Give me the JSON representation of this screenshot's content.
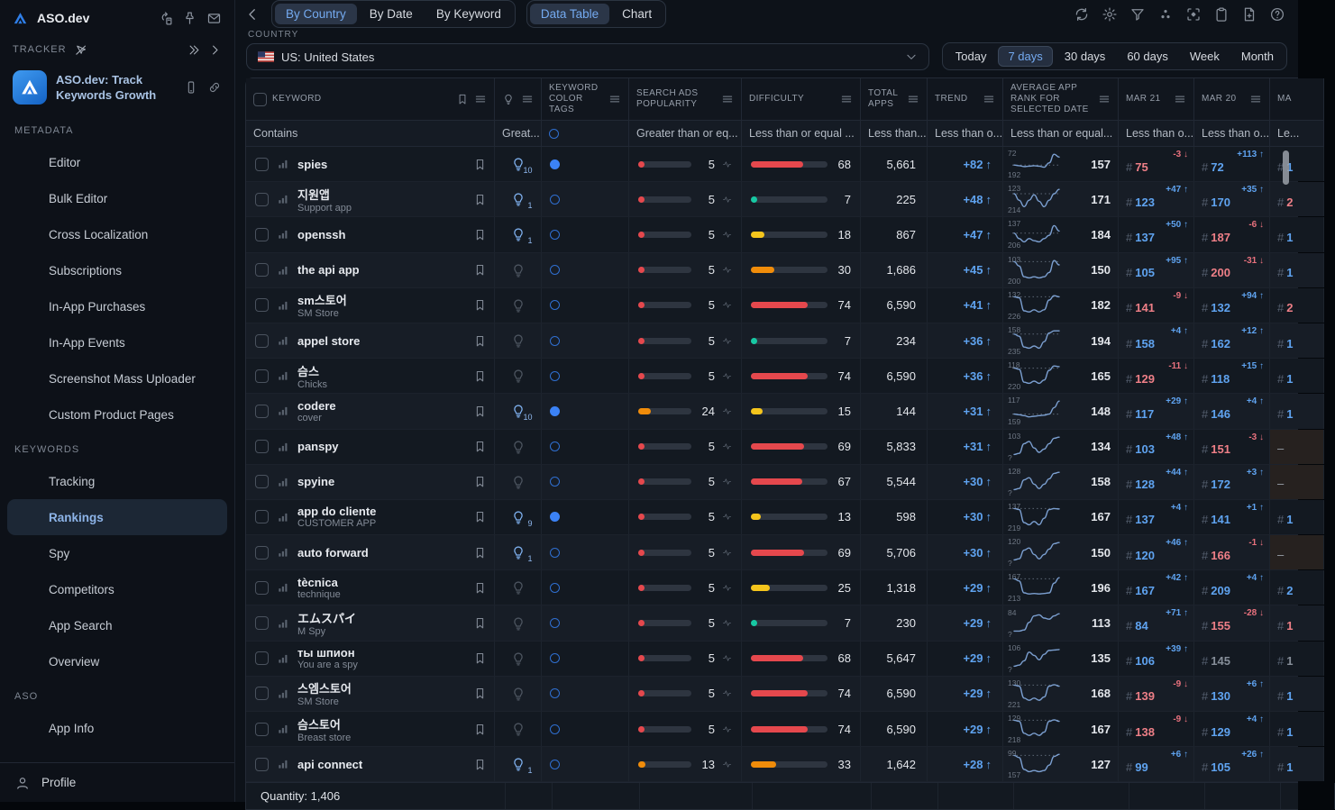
{
  "app": {
    "name": "ASO.dev",
    "tracker_label": "TRACKER",
    "app_card_title": "ASO.dev: Track Keywords Growth",
    "profile_label": "Profile"
  },
  "sidebar": {
    "sections": [
      {
        "label": "METADATA",
        "items": [
          {
            "icon": "pencil",
            "label": "Editor"
          },
          {
            "icon": "bulk",
            "label": "Bulk Editor"
          },
          {
            "icon": "shuffle",
            "label": "Cross Localization"
          },
          {
            "icon": "receipt",
            "label": "Subscriptions"
          },
          {
            "icon": "dollar",
            "label": "In-App Purchases"
          },
          {
            "icon": "bell",
            "label": "In-App Events"
          },
          {
            "icon": "image-up",
            "label": "Screenshot Mass Uploader"
          },
          {
            "icon": "image",
            "label": "Custom Product Pages"
          }
        ]
      },
      {
        "label": "KEYWORDS",
        "items": [
          {
            "icon": "bookmark",
            "label": "Tracking"
          },
          {
            "icon": "key",
            "label": "Rankings",
            "selected": true
          },
          {
            "icon": "shield",
            "label": "Spy"
          },
          {
            "icon": "key-user",
            "label": "Competitors"
          },
          {
            "icon": "bars",
            "label": "App Search"
          },
          {
            "icon": "scan",
            "label": "Overview"
          }
        ]
      },
      {
        "label": "ASO",
        "items": [
          {
            "icon": "info",
            "label": "App Info"
          }
        ]
      }
    ]
  },
  "topbar": {
    "view_tabs": [
      {
        "label": "By Country",
        "selected": true
      },
      {
        "label": "By Date",
        "selected": false
      },
      {
        "label": "By Keyword",
        "selected": false
      }
    ],
    "mode_tabs": [
      {
        "label": "Data Table",
        "selected": true
      },
      {
        "label": "Chart",
        "selected": false
      }
    ]
  },
  "filters": {
    "country_label": "COUNTRY",
    "country_value": "US: United States",
    "ranges": [
      {
        "label": "Today",
        "selected": false
      },
      {
        "label": "7 days",
        "selected": true
      },
      {
        "label": "30 days",
        "selected": false
      },
      {
        "label": "60 days",
        "selected": false
      },
      {
        "label": "Week",
        "selected": false
      },
      {
        "label": "Month",
        "selected": false
      }
    ]
  },
  "table": {
    "columns": {
      "keyword": {
        "label": "KEYWORD",
        "filter": "Contains"
      },
      "bulb": {
        "filter": "Great..."
      },
      "tags": {
        "label": "KEYWORD COLOR TAGS",
        "filter": ""
      },
      "popularity": {
        "label": "SEARCH ADS POPULARITY",
        "filter": "Greater than or eq..."
      },
      "difficulty": {
        "label": "DIFFICULTY",
        "filter": "Less than or equal ..."
      },
      "total": {
        "label": "TOTAL APPS",
        "filter": "Less than..."
      },
      "trend": {
        "label": "TREND",
        "filter": "Less than o..."
      },
      "avgrank": {
        "label": "AVERAGE APP RANK FOR SELECTED DATE",
        "filter": "Less than or equal..."
      },
      "mar21": {
        "label": "MAR 21",
        "filter": "Less than o..."
      },
      "mar20": {
        "label": "MAR 20",
        "filter": "Less than o..."
      },
      "mar19": {
        "label": "MA",
        "filter": "Le..."
      }
    },
    "footer": "Quantity: 1,406",
    "rows": [
      {
        "kw": "spies",
        "sub": "",
        "bulb": "10",
        "tag": "filled",
        "pop": 5,
        "popc": "red",
        "diff": 68,
        "diffc": "red",
        "total": "5,661",
        "trend": "+82",
        "spark": {
          "max": "72",
          "min": "192",
          "val": "157",
          "pts": [
            0.55,
            0.58,
            0.62,
            0.6,
            0.58,
            0.6,
            0.65,
            0.45,
            0.05,
            0.18
          ]
        },
        "d21": {
          "delta": "-3",
          "dir": "down",
          "rank": "75",
          "c": "red"
        },
        "d20": {
          "delta": "+113",
          "dir": "up",
          "rank": "72",
          "c": "blue"
        },
        "d19": {
          "rank": "1",
          "c": "blue"
        }
      },
      {
        "kw": "지원앱",
        "sub": "Support app",
        "bulb": "1",
        "tag": "ring",
        "pop": 5,
        "popc": "red",
        "diff": 7,
        "diffc": "teal",
        "total": "225",
        "trend": "+48",
        "spark": {
          "max": "123",
          "min": "214",
          "val": "171",
          "pts": [
            0.25,
            0.55,
            0.85,
            0.55,
            0.3,
            0.6,
            0.85,
            0.55,
            0.25,
            0.05
          ]
        },
        "d21": {
          "delta": "+47",
          "dir": "up",
          "rank": "123",
          "c": "blue"
        },
        "d20": {
          "delta": "+35",
          "dir": "up",
          "rank": "170",
          "c": "blue"
        },
        "d19": {
          "rank": "2",
          "c": "red"
        }
      },
      {
        "kw": "openssh",
        "sub": "",
        "bulb": "1",
        "tag": "ring",
        "pop": 5,
        "popc": "red",
        "diff": 18,
        "diffc": "yellow",
        "total": "867",
        "trend": "+47",
        "spark": {
          "max": "137",
          "min": "206",
          "val": "184",
          "pts": [
            0.45,
            0.7,
            0.85,
            0.7,
            0.8,
            0.85,
            0.7,
            0.55,
            0.1,
            0.35
          ]
        },
        "d21": {
          "delta": "+50",
          "dir": "up",
          "rank": "137",
          "c": "blue"
        },
        "d20": {
          "delta": "-6",
          "dir": "down",
          "rank": "187",
          "c": "red"
        },
        "d19": {
          "rank": "1",
          "c": "blue"
        }
      },
      {
        "kw": "the api app",
        "sub": "",
        "bulb": "",
        "tag": "ring",
        "pop": 5,
        "popc": "red",
        "diff": 30,
        "diffc": "orange",
        "total": "1,686",
        "trend": "+45",
        "spark": {
          "max": "103",
          "min": "200",
          "val": "150",
          "pts": [
            0.1,
            0.3,
            0.8,
            0.85,
            0.8,
            0.85,
            0.8,
            0.6,
            0.05,
            0.25
          ]
        },
        "d21": {
          "delta": "+95",
          "dir": "up",
          "rank": "105",
          "c": "blue"
        },
        "d20": {
          "delta": "-31",
          "dir": "down",
          "rank": "200",
          "c": "red"
        },
        "d19": {
          "rank": "1",
          "c": "blue"
        }
      },
      {
        "kw": "sm스토어",
        "sub": "SM Store",
        "bulb": "",
        "tag": "ring",
        "pop": 5,
        "popc": "red",
        "diff": 74,
        "diffc": "red",
        "total": "6,590",
        "trend": "+41",
        "spark": {
          "max": "132",
          "min": "226",
          "val": "182",
          "pts": [
            0.1,
            0.15,
            0.75,
            0.8,
            0.7,
            0.8,
            0.7,
            0.25,
            0.05,
            0.1
          ]
        },
        "d21": {
          "delta": "-9",
          "dir": "down",
          "rank": "141",
          "c": "red"
        },
        "d20": {
          "delta": "+94",
          "dir": "up",
          "rank": "132",
          "c": "blue"
        },
        "d19": {
          "rank": "2",
          "c": "red"
        }
      },
      {
        "kw": "appel store",
        "sub": "",
        "bulb": "",
        "tag": "ring",
        "pop": 5,
        "popc": "red",
        "diff": 7,
        "diffc": "teal",
        "total": "234",
        "trend": "+36",
        "spark": {
          "max": "158",
          "min": "235",
          "val": "194",
          "pts": [
            0.2,
            0.3,
            0.8,
            0.85,
            0.75,
            0.85,
            0.55,
            0.15,
            0.05,
            0.05
          ]
        },
        "d21": {
          "delta": "+4",
          "dir": "up",
          "rank": "158",
          "c": "blue"
        },
        "d20": {
          "delta": "+12",
          "dir": "up",
          "rank": "162",
          "c": "blue"
        },
        "d19": {
          "rank": "1",
          "c": "blue"
        }
      },
      {
        "kw": "슴스",
        "sub": "Chicks",
        "bulb": "",
        "tag": "ring",
        "pop": 5,
        "popc": "red",
        "diff": 74,
        "diffc": "red",
        "total": "6,590",
        "trend": "+36",
        "spark": {
          "max": "118",
          "min": "220",
          "val": "165",
          "pts": [
            0.15,
            0.2,
            0.8,
            0.85,
            0.75,
            0.85,
            0.7,
            0.25,
            0.05,
            0.08
          ]
        },
        "d21": {
          "delta": "-11",
          "dir": "down",
          "rank": "129",
          "c": "red"
        },
        "d20": {
          "delta": "+15",
          "dir": "up",
          "rank": "118",
          "c": "blue"
        },
        "d19": {
          "rank": "1",
          "c": "blue"
        }
      },
      {
        "kw": "codere",
        "sub": "cover",
        "bulb": "10",
        "tag": "filled",
        "pop": 24,
        "popc": "orange",
        "diff": 15,
        "diffc": "yellow",
        "total": "144",
        "trend": "+31",
        "spark": {
          "max": "117",
          "min": "159",
          "val": "148",
          "pts": [
            0.65,
            0.68,
            0.72,
            0.78,
            0.75,
            0.72,
            0.7,
            0.65,
            0.35,
            0.05
          ]
        },
        "d21": {
          "delta": "+29",
          "dir": "up",
          "rank": "117",
          "c": "blue"
        },
        "d20": {
          "delta": "+4",
          "dir": "up",
          "rank": "146",
          "c": "blue"
        },
        "d19": {
          "rank": "1",
          "c": "blue"
        }
      },
      {
        "kw": "panspy",
        "sub": "",
        "bulb": "",
        "tag": "ring",
        "pop": 5,
        "popc": "red",
        "diff": 69,
        "diffc": "red",
        "total": "5,833",
        "trend": "+31",
        "spark": {
          "max": "103",
          "min": "?",
          "val": "134",
          "pts": [
            0.85,
            0.8,
            0.35,
            0.25,
            0.55,
            0.75,
            0.6,
            0.35,
            0.1,
            0.05
          ]
        },
        "d21": {
          "delta": "+48",
          "dir": "up",
          "rank": "103",
          "c": "blue"
        },
        "d20": {
          "delta": "-3",
          "dir": "down",
          "rank": "151",
          "c": "red"
        },
        "d19": {
          "rank": "–",
          "c": "gray"
        }
      },
      {
        "kw": "spyine",
        "sub": "",
        "bulb": "",
        "tag": "ring",
        "pop": 5,
        "popc": "red",
        "diff": 67,
        "diffc": "red",
        "total": "5,544",
        "trend": "+30",
        "spark": {
          "max": "128",
          "min": "?",
          "val": "158",
          "pts": [
            0.85,
            0.8,
            0.4,
            0.3,
            0.6,
            0.8,
            0.6,
            0.35,
            0.1,
            0.05
          ]
        },
        "d21": {
          "delta": "+44",
          "dir": "up",
          "rank": "128",
          "c": "blue"
        },
        "d20": {
          "delta": "+3",
          "dir": "up",
          "rank": "172",
          "c": "blue"
        },
        "d19": {
          "rank": "–",
          "c": "gray"
        }
      },
      {
        "kw": "app do cliente",
        "sub": "CUSTOMER APP",
        "bulb": "9",
        "tag": "filled",
        "pop": 5,
        "popc": "red",
        "diff": 13,
        "diffc": "yellow",
        "total": "598",
        "trend": "+30",
        "spark": {
          "max": "137",
          "min": "219",
          "val": "167",
          "pts": [
            0.1,
            0.15,
            0.75,
            0.85,
            0.7,
            0.85,
            0.55,
            0.15,
            0.1,
            0.12
          ]
        },
        "d21": {
          "delta": "+4",
          "dir": "up",
          "rank": "137",
          "c": "blue"
        },
        "d20": {
          "delta": "+1",
          "dir": "up",
          "rank": "141",
          "c": "blue"
        },
        "d19": {
          "rank": "1",
          "c": "blue"
        }
      },
      {
        "kw": "auto forward",
        "sub": "",
        "bulb": "1",
        "tag": "ring",
        "pop": 5,
        "popc": "red",
        "diff": 69,
        "diffc": "red",
        "total": "5,706",
        "trend": "+30",
        "spark": {
          "max": "120",
          "min": "?",
          "val": "150",
          "pts": [
            0.85,
            0.8,
            0.4,
            0.3,
            0.6,
            0.8,
            0.6,
            0.35,
            0.1,
            0.05
          ]
        },
        "d21": {
          "delta": "+46",
          "dir": "up",
          "rank": "120",
          "c": "blue"
        },
        "d20": {
          "delta": "-1",
          "dir": "down",
          "rank": "166",
          "c": "red"
        },
        "d19": {
          "rank": "–",
          "c": "gray"
        }
      },
      {
        "kw": "tècnica",
        "sub": "technique",
        "bulb": "",
        "tag": "ring",
        "pop": 5,
        "popc": "red",
        "diff": 25,
        "diffc": "yellow",
        "total": "1,318",
        "trend": "+29",
        "spark": {
          "max": "167",
          "min": "213",
          "val": "196",
          "pts": [
            0.1,
            0.2,
            0.75,
            0.8,
            0.78,
            0.8,
            0.78,
            0.75,
            0.3,
            0.05
          ]
        },
        "d21": {
          "delta": "+42",
          "dir": "up",
          "rank": "167",
          "c": "blue"
        },
        "d20": {
          "delta": "+4",
          "dir": "up",
          "rank": "209",
          "c": "blue"
        },
        "d19": {
          "rank": "2",
          "c": "blue"
        }
      },
      {
        "kw": "エムスパイ",
        "sub": "M Spy",
        "bulb": "",
        "tag": "ring",
        "pop": 5,
        "popc": "red",
        "diff": 7,
        "diffc": "teal",
        "total": "230",
        "trend": "+29",
        "spark": {
          "max": "84",
          "min": "?",
          "val": "113",
          "pts": [
            0.85,
            0.85,
            0.8,
            0.45,
            0.15,
            0.1,
            0.25,
            0.3,
            0.15,
            0.05
          ]
        },
        "d21": {
          "delta": "+71",
          "dir": "up",
          "rank": "84",
          "c": "blue"
        },
        "d20": {
          "delta": "-28",
          "dir": "down",
          "rank": "155",
          "c": "red"
        },
        "d19": {
          "rank": "1",
          "c": "red"
        }
      },
      {
        "kw": "ты шпион",
        "sub": "You are a spy",
        "bulb": "",
        "tag": "ring",
        "pop": 5,
        "popc": "red",
        "diff": 68,
        "diffc": "red",
        "total": "5,647",
        "trend": "+29",
        "spark": {
          "max": "106",
          "min": "?",
          "val": "135",
          "pts": [
            0.85,
            0.8,
            0.6,
            0.2,
            0.35,
            0.55,
            0.3,
            0.12,
            0.1,
            0.08
          ]
        },
        "d21": {
          "delta": "+39",
          "dir": "up",
          "rank": "106",
          "c": "blue"
        },
        "d20": {
          "delta": "",
          "dir": "",
          "rank": "145",
          "c": "gray"
        },
        "d19": {
          "rank": "1",
          "c": "gray"
        }
      },
      {
        "kw": "스엠스토어",
        "sub": "SM Store",
        "bulb": "",
        "tag": "ring",
        "pop": 5,
        "popc": "red",
        "diff": 74,
        "diffc": "red",
        "total": "6,590",
        "trend": "+29",
        "spark": {
          "max": "130",
          "min": "221",
          "val": "168",
          "pts": [
            0.1,
            0.15,
            0.7,
            0.8,
            0.7,
            0.8,
            0.65,
            0.15,
            0.08,
            0.15
          ]
        },
        "d21": {
          "delta": "-9",
          "dir": "down",
          "rank": "139",
          "c": "red"
        },
        "d20": {
          "delta": "+6",
          "dir": "up",
          "rank": "130",
          "c": "blue"
        },
        "d19": {
          "rank": "1",
          "c": "blue"
        }
      },
      {
        "kw": "슴스토어",
        "sub": "Breast store",
        "bulb": "",
        "tag": "ring",
        "pop": 5,
        "popc": "red",
        "diff": 74,
        "diffc": "red",
        "total": "6,590",
        "trend": "+29",
        "spark": {
          "max": "129",
          "min": "218",
          "val": "167",
          "pts": [
            0.1,
            0.15,
            0.7,
            0.8,
            0.7,
            0.8,
            0.65,
            0.15,
            0.08,
            0.15
          ]
        },
        "d21": {
          "delta": "-9",
          "dir": "down",
          "rank": "138",
          "c": "red"
        },
        "d20": {
          "delta": "+4",
          "dir": "up",
          "rank": "129",
          "c": "blue"
        },
        "d19": {
          "rank": "1",
          "c": "blue"
        }
      },
      {
        "kw": "api connect",
        "sub": "",
        "bulb": "1",
        "tag": "ring",
        "pop": 13,
        "popc": "orange",
        "diff": 33,
        "diffc": "orange",
        "total": "1,642",
        "trend": "+28",
        "spark": {
          "max": "99",
          "min": "157",
          "val": "127",
          "pts": [
            0.1,
            0.2,
            0.75,
            0.85,
            0.8,
            0.85,
            0.8,
            0.55,
            0.15,
            0.05
          ]
        },
        "d21": {
          "delta": "+6",
          "dir": "up",
          "rank": "99",
          "c": "blue"
        },
        "d20": {
          "delta": "+26",
          "dir": "up",
          "rank": "105",
          "c": "blue"
        },
        "d19": {
          "rank": "1",
          "c": "blue"
        }
      }
    ]
  },
  "colors": {
    "accent_blue": "#5fa3f0",
    "salmon": "#ee7f87",
    "bar_red": "#e5484d",
    "bar_orange": "#f08c0a",
    "bar_yellow": "#f5c51c",
    "bar_teal": "#17c8a3"
  }
}
